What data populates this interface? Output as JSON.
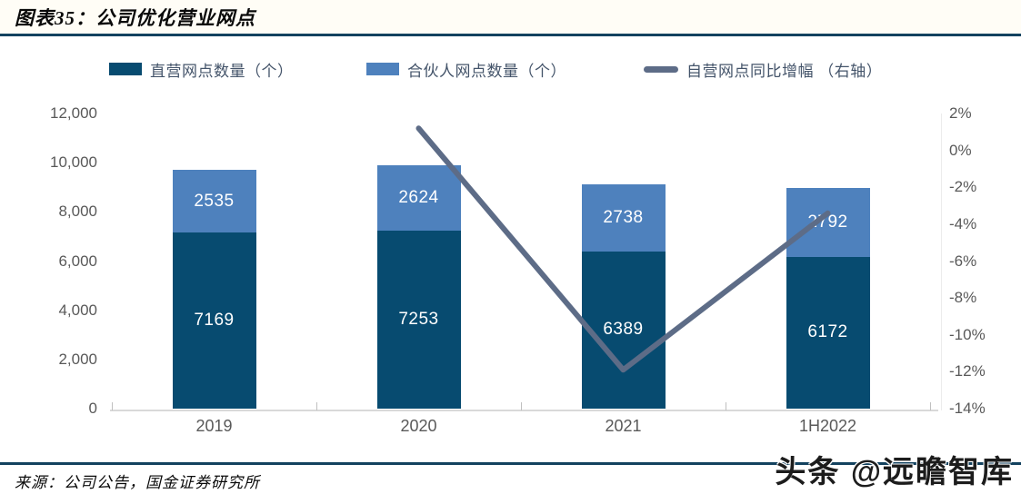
{
  "figure": {
    "title": "图表35：公司优化营业网点",
    "source": "来源：公司公告，国金证券研究所",
    "watermark": "头条 @远瞻智库"
  },
  "legend": [
    {
      "label": "直营网点数量（个）",
      "color": "#074b70",
      "marker": "rect"
    },
    {
      "label": "合伙人网点数量（个）",
      "color": "#4e81bd",
      "marker": "rect"
    },
    {
      "label": "自营网点同比增幅 （右轴）",
      "color": "#5d6c87",
      "marker": "line"
    }
  ],
  "chart_data": {
    "type": "bar",
    "subtype": "stacked-bars-with-line",
    "categories": [
      "2019",
      "2020",
      "2021",
      "1H2022"
    ],
    "series": [
      {
        "name": "直营网点数量（个）",
        "type": "bar",
        "color": "#074b70",
        "values": [
          7169,
          7253,
          6389,
          6172
        ]
      },
      {
        "name": "合伙人网点数量（个）",
        "type": "bar",
        "color": "#4e81bd",
        "values": [
          2535,
          2624,
          2738,
          2792
        ]
      },
      {
        "name": "自营网点同比增幅（右轴）",
        "type": "line",
        "axis": "right",
        "color": "#5d6c87",
        "values": [
          null,
          1.2,
          -11.9,
          -3.4
        ]
      }
    ],
    "left_axis": {
      "max": 12000,
      "min": 0,
      "step": 2000,
      "ticks": [
        "12,000",
        "10,000",
        "8,000",
        "6,000",
        "4,000",
        "2,000",
        "0"
      ]
    },
    "right_axis": {
      "max": 2,
      "min": -14,
      "step": 2,
      "ticks": [
        "2%",
        "0%",
        "-2%",
        "-4%",
        "-6%",
        "-8%",
        "-10%",
        "-12%",
        "-14%"
      ]
    },
    "grid": false,
    "legend_position": "top"
  }
}
